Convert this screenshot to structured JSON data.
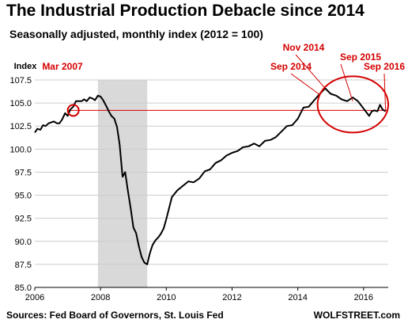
{
  "header": {
    "title": "The Industrial Production Debacle since 2014",
    "subtitle": "Seasonally adjusted, monthly index (2012 = 100)"
  },
  "footer": {
    "source": "Sources: Fed Board of Governors, St. Louis Fed",
    "brand": "WOLFSTREET.com"
  },
  "chart_data": {
    "type": "line",
    "title": "The Industrial Production Debacle since 2014",
    "subtitle": "Seasonally adjusted, monthly index (2012 = 100)",
    "ylabel": "Index",
    "xlabel": "",
    "xlim": [
      2006,
      2016.75
    ],
    "ylim": [
      85.0,
      107.5
    ],
    "x_ticks": [
      "2006",
      "2008",
      "2010",
      "2012",
      "2014",
      "2016"
    ],
    "y_ticks": [
      "85.0",
      "87.5",
      "90.0",
      "92.5",
      "95.0",
      "97.5",
      "100.0",
      "102.5",
      "105.0",
      "107.5"
    ],
    "grid": true,
    "colors": {
      "line": "#000000",
      "annotation": "#d40000",
      "recession": "#d9d9d9",
      "grid": "#cccccc"
    },
    "recession_band": [
      2007.92,
      2009.42
    ],
    "reference_line": {
      "y": 104.2,
      "x_from": 2007.0
    },
    "highlights": [
      {
        "label": "Mar 2007",
        "x": 2007.17,
        "y": 104.2
      }
    ],
    "annotations": [
      {
        "label": "Mar 2007",
        "x": 2007.17,
        "y": 104.2
      },
      {
        "label": "Sep 2014",
        "x": 2014.67,
        "y": 105.9
      },
      {
        "label": "Nov 2014",
        "x": 2014.83,
        "y": 106.6
      },
      {
        "label": "Sep 2015",
        "x": 2015.67,
        "y": 105.2
      },
      {
        "label": "Sep 2016",
        "x": 2016.67,
        "y": 104.1
      }
    ],
    "highlight_ellipse": {
      "x_range": [
        2014.6,
        2016.75
      ],
      "y_range": [
        101.8,
        107.9
      ]
    },
    "series": [
      {
        "x": [
          2006.0,
          2006.08,
          2006.17,
          2006.25,
          2006.33,
          2006.42,
          2006.5,
          2006.58,
          2006.67,
          2006.75,
          2006.83,
          2006.92,
          2007.0,
          2007.08,
          2007.17,
          2007.25,
          2007.33,
          2007.42,
          2007.5,
          2007.58,
          2007.67,
          2007.75,
          2007.83,
          2007.92,
          2008.0,
          2008.08,
          2008.17,
          2008.25,
          2008.33,
          2008.42,
          2008.5,
          2008.58,
          2008.67,
          2008.75,
          2008.83,
          2008.92,
          2009.0,
          2009.08,
          2009.17,
          2009.25,
          2009.33,
          2009.42,
          2009.5,
          2009.58,
          2009.67,
          2009.75,
          2009.83,
          2009.92,
          2010.0,
          2010.17,
          2010.33,
          2010.5,
          2010.67,
          2010.83,
          2011.0,
          2011.17,
          2011.33,
          2011.5,
          2011.67,
          2011.83,
          2012.0,
          2012.17,
          2012.33,
          2012.5,
          2012.67,
          2012.83,
          2013.0,
          2013.17,
          2013.33,
          2013.5,
          2013.67,
          2013.83,
          2014.0,
          2014.17,
          2014.33,
          2014.5,
          2014.67,
          2014.83,
          2015.0,
          2015.17,
          2015.33,
          2015.5,
          2015.67,
          2015.83,
          2016.0,
          2016.17,
          2016.25,
          2016.33,
          2016.42,
          2016.5,
          2016.58,
          2016.67
        ],
        "values": [
          101.8,
          102.2,
          102.1,
          102.6,
          102.5,
          102.8,
          102.9,
          103.0,
          102.8,
          102.8,
          103.2,
          103.9,
          103.6,
          104.3,
          104.6,
          105.2,
          105.2,
          105.2,
          105.4,
          105.2,
          105.6,
          105.5,
          105.3,
          105.8,
          105.7,
          105.3,
          104.7,
          104.1,
          103.6,
          103.3,
          102.4,
          100.5,
          97.0,
          97.5,
          95.5,
          93.5,
          91.5,
          90.9,
          89.4,
          88.3,
          87.7,
          87.5,
          88.7,
          89.6,
          90.1,
          90.4,
          90.8,
          91.4,
          92.4,
          94.8,
          95.5,
          96.0,
          96.5,
          96.4,
          96.8,
          97.6,
          97.8,
          98.5,
          98.8,
          99.3,
          99.6,
          99.8,
          100.2,
          100.3,
          100.6,
          100.3,
          100.9,
          101.0,
          101.3,
          101.9,
          102.5,
          102.6,
          103.3,
          104.5,
          104.6,
          105.3,
          106.0,
          106.6,
          106.0,
          105.8,
          105.4,
          105.2,
          105.6,
          105.2,
          104.4,
          103.6,
          104.1,
          104.2,
          104.1,
          104.8,
          104.3,
          104.1
        ]
      }
    ]
  }
}
